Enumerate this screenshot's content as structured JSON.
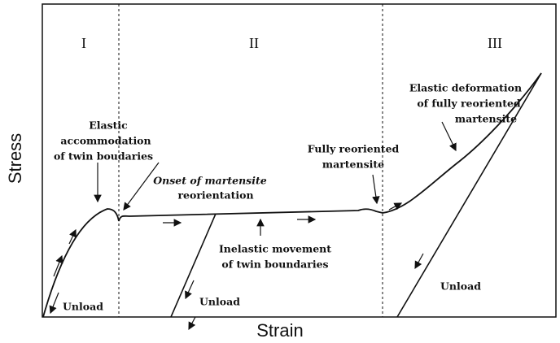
{
  "axes": {
    "y_label": "Stress",
    "x_label": "Strain"
  },
  "regions": [
    "I",
    "II",
    "III"
  ],
  "annotations": {
    "elastic_accommodation": [
      "Elastic",
      "accommodation",
      "of twin boudaries"
    ],
    "onset": [
      "Onset of martensite",
      "reorientation"
    ],
    "inelastic": [
      "Inelastic movement",
      "of twin boundaries"
    ],
    "fully_reoriented": [
      "Fully reoriented",
      "martensite"
    ],
    "elastic_deformation": [
      "Elastic deformation",
      "of fully reoriented",
      "martensite"
    ],
    "unload": [
      "Unload",
      "Unload",
      "Unload"
    ]
  }
}
